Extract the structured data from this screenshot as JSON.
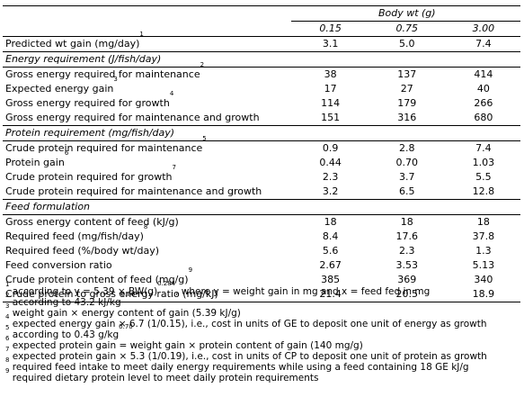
{
  "header": {
    "group_title": "Body wt (g)",
    "columns": [
      "0.15",
      "0.75",
      "3.00"
    ]
  },
  "rows": {
    "predicted": {
      "label": "Predicted wt gain (mg/day)",
      "sup": "1",
      "values": [
        "3.1",
        "5.0",
        "7.4"
      ]
    },
    "energy_section": "Energy requirement (J/fish/day)",
    "energy": [
      {
        "label": "Gross energy required for maintenance",
        "sup": "2",
        "values": [
          "38",
          "137",
          "414"
        ]
      },
      {
        "label": "Expected energy gain",
        "sup": "3",
        "values": [
          "17",
          "27",
          "40"
        ]
      },
      {
        "label": "Gross energy required for growth",
        "sup": "4",
        "values": [
          "114",
          "179",
          "266"
        ]
      },
      {
        "label": "Gross energy required for maintenance and growth",
        "sup": "",
        "values": [
          "151",
          "316",
          "680"
        ]
      }
    ],
    "protein_section": "Protein requirement (mg/fish/day)",
    "protein": [
      {
        "label": "Crude protein required for maintenance",
        "sup": "5",
        "values": [
          "0.9",
          "2.8",
          "7.4"
        ]
      },
      {
        "label": "Protein gain",
        "sup": "6",
        "values": [
          "0.44",
          "0.70",
          "1.03"
        ]
      },
      {
        "label": "Crude protein required for growth",
        "sup": "7",
        "values": [
          "2.3",
          "3.7",
          "5.5"
        ]
      },
      {
        "label": "Crude protein required for maintenance and growth",
        "sup": "",
        "values": [
          "3.2",
          "6.5",
          "12.8"
        ]
      }
    ],
    "feed_section": "Feed formulation",
    "feed": [
      {
        "label": "Gross energy content of feed (kJ/g)",
        "sup": "",
        "values": [
          "18",
          "18",
          "18"
        ]
      },
      {
        "label": "Required feed (mg/fish/day)",
        "sup": "8",
        "values": [
          "8.4",
          "17.6",
          "37.8"
        ]
      },
      {
        "label": "Required feed (%/body wt/day)",
        "sup": "",
        "values": [
          "5.6",
          "2.3",
          "1.3"
        ]
      },
      {
        "label": "Feed conversion ratio",
        "sup": "",
        "values": [
          "2.67",
          "3.53",
          "5.13"
        ]
      },
      {
        "label": "Crude protein content of feed (mg/g)",
        "sup": "9",
        "values": [
          "385",
          "369",
          "340"
        ]
      },
      {
        "label": "Crude protein to gross energy ratio (mg/kJ)",
        "sup": "",
        "values": [
          "21.4",
          "20.5",
          "18.9"
        ]
      }
    ]
  },
  "footnotes": {
    "f1": {
      "mark": "1",
      "a": " according to y = 5.39 × BW(g)",
      "sup": "0.284",
      "b": ", where y = weight gain in mg and x = feed fed in mg"
    },
    "f2": {
      "mark": "2",
      "a": " according to 43.2 kJ/kg",
      "sup": "0.80",
      "b": ""
    },
    "f3": {
      "mark": "3",
      "a": " weight gain × energy content of gain (5.39 kJ/g)"
    },
    "f4": {
      "mark": "4",
      "a": " expected energy gain × 6.7 (1/0.15), i.e., cost in units of GE to deposit one unit of energy as growth"
    },
    "f5": {
      "mark": "5",
      "a": " according to 0.43 g/kg",
      "sup": "0.70",
      "b": ""
    },
    "f6": {
      "mark": "6",
      "a": " expected protein gain = weight gain × protein content of gain (140 mg/g)"
    },
    "f7": {
      "mark": "7",
      "a": " expected protein gain × 5.3 (1/0.19), i.e., cost in units of CP to deposit one unit of protein as growth"
    },
    "f8": {
      "mark": "8",
      "a": " required feed intake to meet daily energy requirements while using a feed containing 18 GE kJ/g"
    },
    "f9": {
      "mark": "9",
      "a": " required dietary protein level to meet daily protein requirements"
    }
  }
}
